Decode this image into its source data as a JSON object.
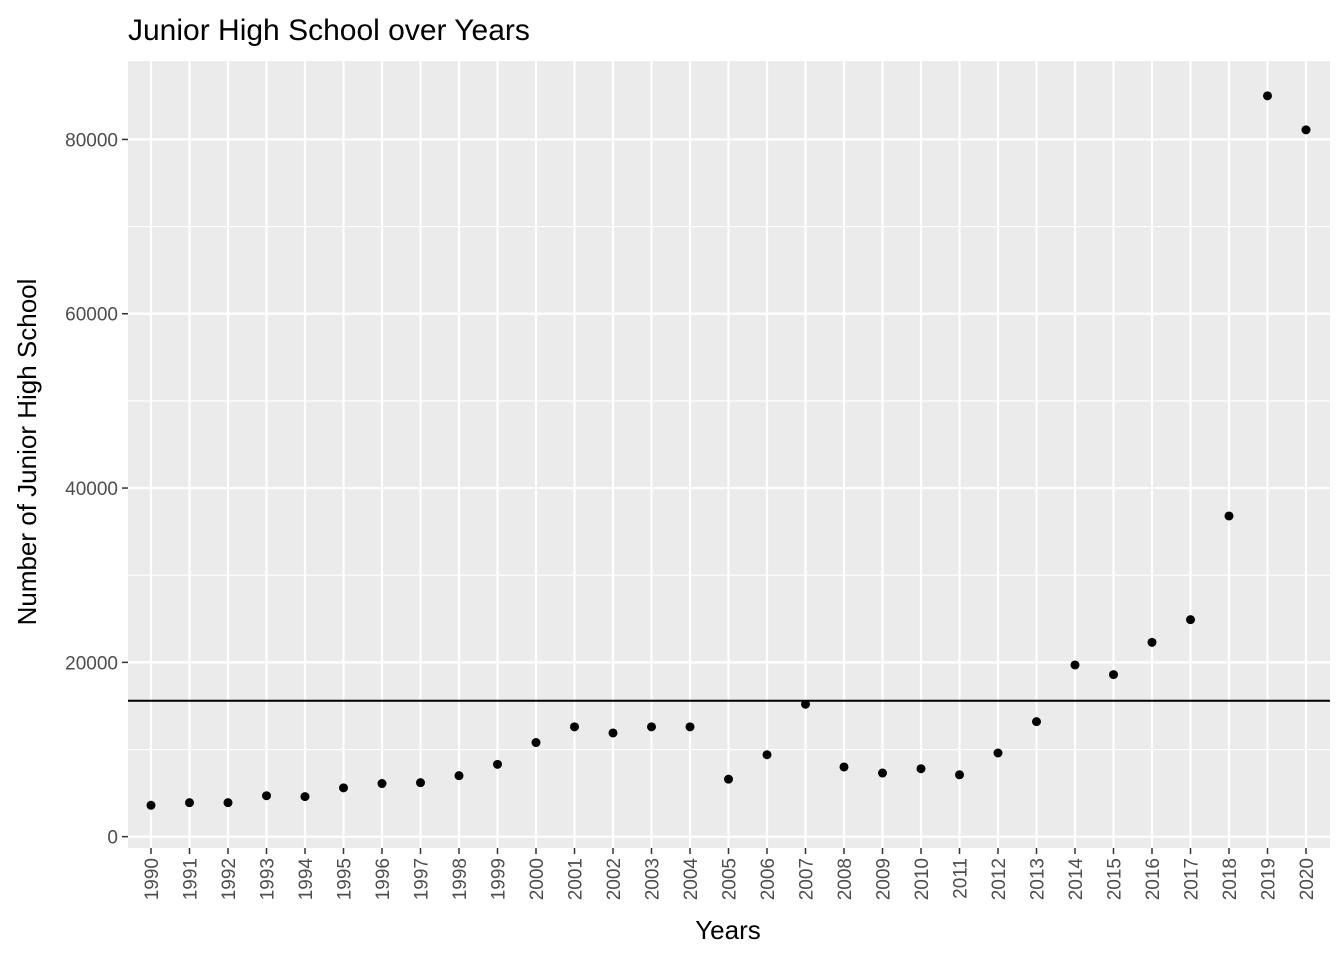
{
  "chart_data": {
    "type": "scatter",
    "title": "Junior High School over Years",
    "xlabel": "Years",
    "ylabel": "Number of Junior High School",
    "x": [
      "1990",
      "1991",
      "1992",
      "1993",
      "1994",
      "1995",
      "1996",
      "1997",
      "1998",
      "1999",
      "2000",
      "2001",
      "2002",
      "2003",
      "2004",
      "2005",
      "2006",
      "2007",
      "2008",
      "2009",
      "2010",
      "2011",
      "2012",
      "2013",
      "2014",
      "2015",
      "2016",
      "2017",
      "2018",
      "2019",
      "2020"
    ],
    "y": [
      3600,
      3900,
      3900,
      4700,
      4600,
      5600,
      6100,
      6200,
      7000,
      8300,
      10800,
      12600,
      11900,
      12600,
      12600,
      6600,
      9400,
      15200,
      8000,
      7300,
      7800,
      7100,
      9600,
      13200,
      19700,
      18600,
      22300,
      24900,
      36800,
      85000,
      81100
    ],
    "hline": 15600,
    "yticks": [
      0,
      20000,
      40000,
      60000,
      80000
    ],
    "ylim": [
      -1300,
      89000
    ],
    "grid": true,
    "x_tick_rotation": "vertical",
    "colors": {
      "panel": "#ebebeb",
      "grid": "#ffffff",
      "points": "#000000",
      "hline": "#000000",
      "tick_text": "#4d4d4d"
    }
  }
}
